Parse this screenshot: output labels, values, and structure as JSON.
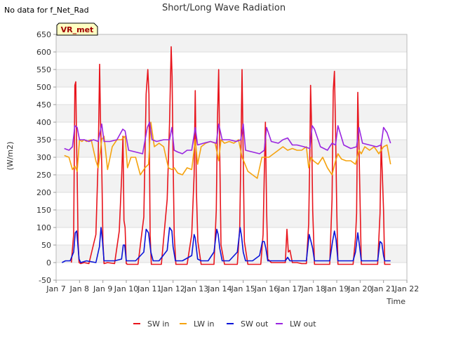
{
  "note": "No data for f_Net_Rad",
  "badge": "VR_met",
  "chart_data": {
    "type": "line",
    "title": "Short/Long Wave Radiation",
    "xlabel": "Time",
    "ylabel": "(W/m2)",
    "ylim": [
      -50,
      650
    ],
    "xlim": [
      7,
      22
    ],
    "yticks": [
      -50,
      0,
      50,
      100,
      150,
      200,
      250,
      300,
      350,
      400,
      450,
      500,
      550,
      600,
      650
    ],
    "xticks": [
      {
        "v": 7,
        "label": "Jan 7"
      },
      {
        "v": 8,
        "label": "Jan 8"
      },
      {
        "v": 9,
        "label": "Jan 9"
      },
      {
        "v": 10,
        "label": "Jan 10"
      },
      {
        "v": 11,
        "label": "Jan 11"
      },
      {
        "v": 12,
        "label": "Jan 12"
      },
      {
        "v": 13,
        "label": "Jan 13"
      },
      {
        "v": 14,
        "label": "Jan 14"
      },
      {
        "v": 15,
        "label": "Jan 15"
      },
      {
        "v": 16,
        "label": "Jan 16"
      },
      {
        "v": 17,
        "label": "Jan 17"
      },
      {
        "v": 18,
        "label": "Jan 18"
      },
      {
        "v": 19,
        "label": "Jan 19"
      },
      {
        "v": 20,
        "label": "Jan 20"
      },
      {
        "v": 21,
        "label": "Jan 21"
      },
      {
        "v": 22,
        "label": "Jan 22"
      }
    ],
    "grid": true,
    "legend_position": "bottom",
    "series": [
      {
        "name": "SW in",
        "color": "#e8141c",
        "x": [
          7.65,
          7.75,
          7.8,
          7.84,
          7.87,
          7.9,
          7.94,
          7.98,
          8.05,
          8.2,
          8.4,
          8.7,
          8.8,
          8.86,
          8.9,
          8.95,
          9.0,
          9.05,
          9.2,
          9.5,
          9.7,
          9.8,
          9.86,
          9.9,
          9.95,
          10.0,
          10.05,
          10.2,
          10.5,
          10.75,
          10.85,
          10.92,
          10.97,
          11.02,
          11.07,
          11.15,
          11.3,
          11.5,
          11.75,
          11.85,
          11.92,
          11.96,
          12.0,
          12.05,
          12.12,
          12.3,
          12.6,
          12.8,
          12.9,
          12.95,
          13.0,
          13.06,
          13.2,
          13.5,
          13.75,
          13.85,
          13.9,
          13.95,
          14.0,
          14.05,
          14.2,
          14.5,
          14.75,
          14.85,
          14.9,
          14.95,
          15.0,
          15.05,
          15.2,
          15.5,
          15.75,
          15.85,
          15.9,
          15.95,
          16.0,
          16.05,
          16.2,
          16.5,
          16.8,
          16.87,
          16.93,
          17.0,
          17.1,
          17.3,
          17.5,
          17.7,
          17.8,
          17.85,
          17.88,
          17.92,
          17.97,
          18.05,
          18.2,
          18.4,
          18.7,
          18.8,
          18.85,
          18.9,
          18.95,
          19.0,
          19.05,
          19.2,
          19.5,
          19.7,
          19.8,
          19.85,
          19.9,
          19.96,
          20.05,
          20.2,
          20.5,
          20.75,
          20.85,
          20.9,
          20.95,
          21.0,
          21.05,
          21.2,
          21.3
        ],
        "y": [
          0,
          80,
          505,
          515,
          360,
          250,
          60,
          0,
          -3,
          0,
          -3,
          80,
          300,
          565,
          400,
          280,
          60,
          -3,
          0,
          -3,
          90,
          240,
          360,
          120,
          100,
          -3,
          -5,
          -5,
          -5,
          130,
          480,
          550,
          480,
          80,
          -5,
          -5,
          -5,
          -5,
          180,
          400,
          615,
          530,
          300,
          80,
          -5,
          -5,
          -5,
          80,
          250,
          490,
          200,
          60,
          -5,
          -5,
          -5,
          150,
          410,
          550,
          300,
          50,
          -5,
          -5,
          -5,
          100,
          300,
          550,
          300,
          60,
          -5,
          -5,
          -5,
          80,
          250,
          400,
          150,
          10,
          0,
          0,
          0,
          95,
          30,
          35,
          0,
          0,
          -3,
          -3,
          110,
          320,
          505,
          400,
          150,
          -5,
          -5,
          -5,
          -5,
          180,
          490,
          545,
          380,
          150,
          -5,
          -5,
          -5,
          -5,
          70,
          140,
          485,
          300,
          -5,
          -5,
          -5,
          -5,
          140,
          340,
          250,
          150,
          -5,
          -5,
          -5
        ]
      },
      {
        "name": "LW in",
        "color": "#f5a30f",
        "x": [
          7.35,
          7.55,
          7.7,
          7.8,
          7.9,
          8.0,
          8.1,
          8.2,
          8.3,
          8.5,
          8.7,
          8.8,
          8.95,
          9.05,
          9.2,
          9.4,
          9.6,
          9.8,
          9.95,
          10.05,
          10.2,
          10.4,
          10.6,
          10.8,
          10.95,
          11.05,
          11.2,
          11.4,
          11.6,
          11.8,
          11.95,
          12.05,
          12.2,
          12.4,
          12.6,
          12.8,
          12.95,
          13.05,
          13.2,
          13.4,
          13.6,
          13.8,
          13.95,
          14.05,
          14.2,
          14.4,
          14.6,
          14.8,
          14.95,
          15.05,
          15.2,
          15.4,
          15.6,
          15.8,
          15.95,
          16.1,
          16.3,
          16.5,
          16.7,
          16.9,
          17.1,
          17.3,
          17.5,
          17.7,
          17.8,
          17.9,
          18.0,
          18.2,
          18.4,
          18.6,
          18.8,
          18.95,
          19.05,
          19.2,
          19.4,
          19.6,
          19.8,
          19.95,
          20.05,
          20.2,
          20.4,
          20.6,
          20.8,
          21.0,
          21.15,
          21.3
        ],
        "y": [
          305,
          300,
          265,
          275,
          260,
          350,
          345,
          350,
          345,
          350,
          290,
          270,
          350,
          360,
          265,
          330,
          350,
          350,
          360,
          270,
          300,
          300,
          250,
          270,
          280,
          400,
          330,
          340,
          330,
          270,
          265,
          270,
          255,
          250,
          270,
          265,
          350,
          280,
          330,
          340,
          345,
          340,
          290,
          350,
          340,
          345,
          340,
          350,
          300,
          285,
          260,
          250,
          240,
          300,
          300,
          300,
          310,
          320,
          330,
          320,
          325,
          320,
          320,
          330,
          270,
          300,
          290,
          280,
          300,
          270,
          250,
          290,
          310,
          295,
          290,
          290,
          280,
          320,
          310,
          330,
          320,
          330,
          310,
          330,
          335,
          280
        ]
      },
      {
        "name": "SW out",
        "color": "#0a14d8",
        "x": [
          7.25,
          7.4,
          7.6,
          7.75,
          7.82,
          7.88,
          7.93,
          7.98,
          8.05,
          8.3,
          8.7,
          8.85,
          8.92,
          8.97,
          9.05,
          9.2,
          9.5,
          9.8,
          9.87,
          9.93,
          10.0,
          10.1,
          10.4,
          10.75,
          10.85,
          10.95,
          11.05,
          11.15,
          11.4,
          11.75,
          11.85,
          11.95,
          12.0,
          12.1,
          12.4,
          12.8,
          12.9,
          12.95,
          13.05,
          13.2,
          13.5,
          13.75,
          13.87,
          13.93,
          14.0,
          14.1,
          14.4,
          14.75,
          14.87,
          14.93,
          15.0,
          15.1,
          15.4,
          15.7,
          15.82,
          15.9,
          15.97,
          16.05,
          16.3,
          16.8,
          16.9,
          17.0,
          17.3,
          17.7,
          17.82,
          17.9,
          17.97,
          18.05,
          18.3,
          18.7,
          18.82,
          18.9,
          18.97,
          19.05,
          19.3,
          19.7,
          19.8,
          19.9,
          19.97,
          20.05,
          20.3,
          20.75,
          20.85,
          20.93,
          21.0,
          21.05,
          21.3
        ],
        "y": [
          0,
          5,
          5,
          30,
          85,
          90,
          50,
          10,
          0,
          5,
          0,
          45,
          100,
          70,
          5,
          5,
          5,
          10,
          50,
          50,
          5,
          5,
          5,
          30,
          95,
          85,
          30,
          5,
          5,
          35,
          100,
          90,
          45,
          5,
          5,
          20,
          80,
          70,
          10,
          5,
          5,
          30,
          95,
          80,
          40,
          5,
          5,
          30,
          100,
          75,
          30,
          5,
          5,
          20,
          60,
          60,
          40,
          5,
          5,
          5,
          15,
          5,
          5,
          5,
          80,
          60,
          40,
          5,
          5,
          5,
          60,
          90,
          65,
          5,
          5,
          5,
          30,
          85,
          50,
          5,
          5,
          5,
          60,
          55,
          20,
          5,
          5
        ]
      },
      {
        "name": "LW out",
        "color": "#9a26e0",
        "x": [
          7.35,
          7.55,
          7.7,
          7.8,
          7.9,
          8.0,
          8.2,
          8.4,
          8.6,
          8.8,
          8.95,
          9.05,
          9.3,
          9.6,
          9.85,
          9.95,
          10.1,
          10.4,
          10.7,
          10.9,
          11.0,
          11.1,
          11.3,
          11.6,
          11.85,
          11.95,
          12.05,
          12.2,
          12.4,
          12.6,
          12.8,
          12.95,
          13.05,
          13.3,
          13.6,
          13.85,
          13.95,
          14.1,
          14.4,
          14.7,
          14.9,
          15.0,
          15.1,
          15.4,
          15.7,
          15.9,
          16.0,
          16.2,
          16.5,
          16.7,
          16.9,
          17.1,
          17.3,
          17.6,
          17.85,
          17.95,
          18.05,
          18.3,
          18.6,
          18.8,
          18.95,
          19.05,
          19.3,
          19.6,
          19.85,
          19.95,
          20.1,
          20.4,
          20.7,
          20.9,
          21.0,
          21.15,
          21.3
        ],
        "y": [
          325,
          320,
          330,
          390,
          385,
          350,
          350,
          345,
          350,
          345,
          395,
          345,
          345,
          350,
          380,
          375,
          320,
          315,
          310,
          385,
          400,
          350,
          345,
          350,
          350,
          385,
          320,
          315,
          310,
          320,
          320,
          385,
          335,
          340,
          345,
          340,
          395,
          350,
          350,
          345,
          350,
          395,
          320,
          315,
          310,
          320,
          385,
          345,
          340,
          350,
          355,
          335,
          335,
          330,
          325,
          390,
          380,
          330,
          320,
          340,
          335,
          390,
          335,
          325,
          330,
          385,
          340,
          335,
          330,
          335,
          385,
          370,
          340
        ]
      }
    ]
  }
}
